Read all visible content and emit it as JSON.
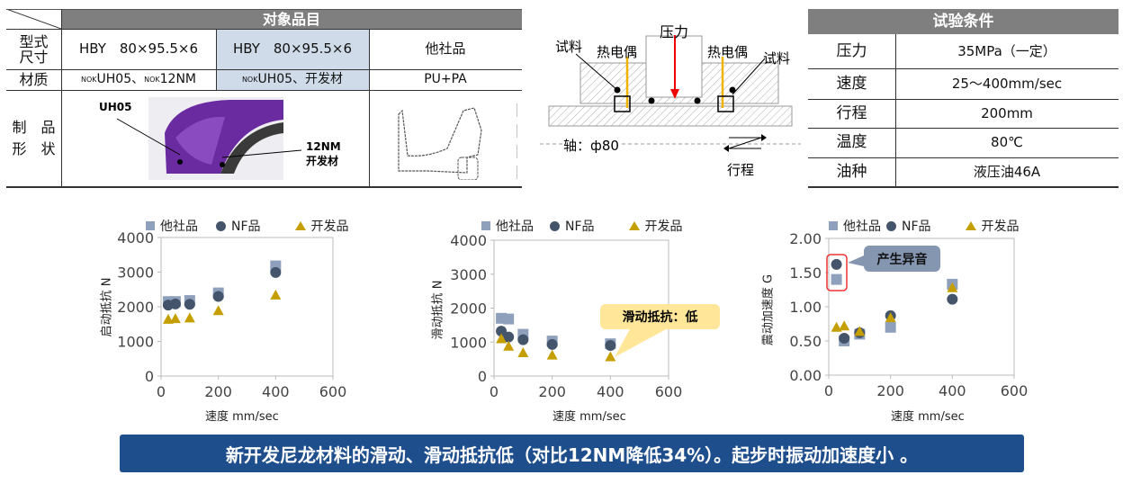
{
  "target_table": {
    "header": "对象品目",
    "row_labels": [
      "型式\n尺寸",
      "材质",
      "制　品\n形　状"
    ],
    "sizes": [
      "HBY　80×95.5×6",
      "HBY　80×95.5×6",
      "他社品"
    ],
    "materials": [
      {
        "sup1": "NOK",
        "a": "UH05、",
        "sup2": "NOK",
        "b": "12NM"
      },
      {
        "sup1": "NOK",
        "a": "UH05、开发材"
      },
      {
        "a": "PU+PA"
      }
    ],
    "shape_labels": {
      "uh05": "UH05",
      "nm12": "12NM\n开发材"
    },
    "colors": {
      "header": "#7f7f7f",
      "highlight": "#cfdbe8",
      "seal_purple": "#6a2aa0"
    }
  },
  "diagram": {
    "pressure": "压力",
    "sample": "试料",
    "thermocouple": "热电偶",
    "shaft": "轴：ф80",
    "stroke": "行程"
  },
  "conditions": {
    "header": "试验条件",
    "rows": [
      {
        "label": "压力",
        "value": "35MPa（一定）"
      },
      {
        "label": "速度",
        "value": "25～400mm/sec"
      },
      {
        "label": "行程",
        "value": "200mm"
      },
      {
        "label": "温度",
        "value": "80℃"
      },
      {
        "label": "油种",
        "value": "液压油46A"
      }
    ]
  },
  "legend": {
    "other": "他社品",
    "nf": "NF品",
    "dev": "开发品"
  },
  "chart_data": [
    {
      "type": "scatter",
      "xlabel": "速度 mm/sec",
      "ylabel": "启动抵抗 N",
      "xlim": [
        0,
        600
      ],
      "ylim": [
        0,
        4000
      ],
      "xticks": [
        "0",
        "200",
        "400",
        "600"
      ],
      "yticks": [
        "0",
        "1000",
        "2000",
        "3000",
        "4000"
      ],
      "legend": "top",
      "grid": false,
      "x": [
        25,
        50,
        100,
        200,
        400
      ],
      "series": [
        {
          "name": "他社品",
          "marker": "square",
          "color": "#8fa0bd",
          "values": [
            2150,
            2150,
            2180,
            2400,
            3180
          ]
        },
        {
          "name": "NF品",
          "marker": "circle",
          "color": "#44546a",
          "values": [
            2050,
            2080,
            2070,
            2300,
            2990
          ]
        },
        {
          "name": "开发品",
          "marker": "triangle",
          "color": "#c59e00",
          "values": [
            1640,
            1660,
            1680,
            1890,
            2340
          ]
        }
      ]
    },
    {
      "type": "scatter",
      "xlabel": "速度 mm/sec",
      "ylabel": "滑动抵抗 N",
      "xlim": [
        0,
        600
      ],
      "ylim": [
        0,
        4000
      ],
      "xticks": [
        "0",
        "200",
        "400",
        "600"
      ],
      "yticks": [
        "0",
        "1000",
        "2000",
        "3000",
        "4000"
      ],
      "legend": "top",
      "grid": false,
      "x": [
        25,
        50,
        100,
        200,
        400
      ],
      "annotation": "滑动抵抗：低",
      "series": [
        {
          "name": "他社品",
          "marker": "square",
          "color": "#8fa0bd",
          "values": [
            1700,
            1680,
            1230,
            1030,
            950
          ]
        },
        {
          "name": "NF品",
          "marker": "circle",
          "color": "#44546a",
          "values": [
            1320,
            1150,
            1070,
            930,
            900
          ]
        },
        {
          "name": "开发品",
          "marker": "triangle",
          "color": "#c59e00",
          "values": [
            1100,
            880,
            690,
            620,
            570
          ]
        }
      ]
    },
    {
      "type": "scatter",
      "xlabel": "速度 mm/sec",
      "ylabel": "震动加速度 G",
      "xlim": [
        0,
        600
      ],
      "ylim": [
        0,
        2
      ],
      "xticks": [
        "0",
        "200",
        "400",
        "600"
      ],
      "yticks": [
        "0.00",
        "0.50",
        "1.00",
        "1.50",
        "2.00"
      ],
      "legend": "top",
      "grid": false,
      "x": [
        25,
        50,
        100,
        200,
        400
      ],
      "annotation": "产生异音",
      "series": [
        {
          "name": "他社品",
          "marker": "square",
          "color": "#8fa0bd",
          "values": [
            1.4,
            0.5,
            0.6,
            0.7,
            1.33
          ]
        },
        {
          "name": "NF品",
          "marker": "circle",
          "color": "#44546a",
          "values": [
            1.62,
            0.54,
            0.62,
            0.87,
            1.11
          ]
        },
        {
          "name": "开发品",
          "marker": "triangle",
          "color": "#c59e00",
          "values": [
            0.7,
            0.72,
            0.64,
            0.84,
            1.28
          ]
        }
      ]
    }
  ],
  "banner": "新开发尼龙材料的滑动、滑动抵抗低（对比12NM降低34%）。起步时振动加速度小 。"
}
